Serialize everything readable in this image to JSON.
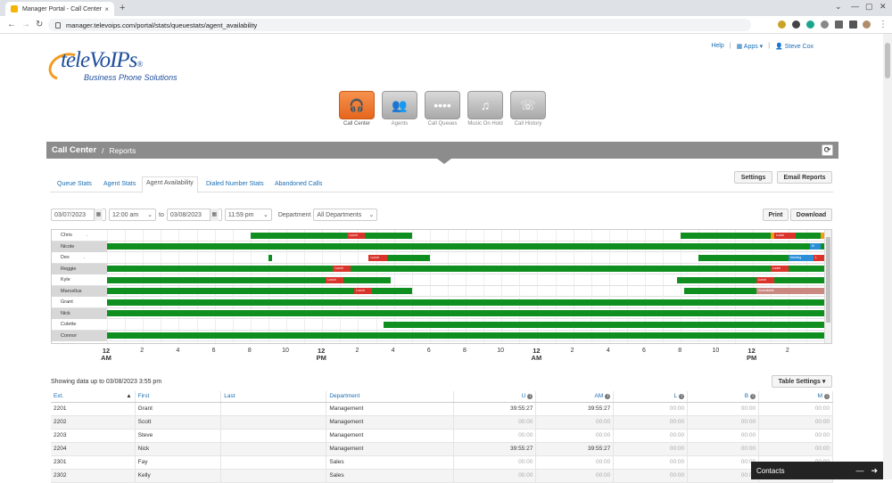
{
  "browser": {
    "tab_title": "Manager Portal - Call Center",
    "url": "manager.televoips.com/portal/stats/queuestats/agent_availability"
  },
  "toplinks": {
    "help": "Help",
    "apps": "Apps ▾",
    "user": "Steve Cox"
  },
  "logo": {
    "main": "teleVoIPs",
    "reg": "®",
    "sub": "Business Phone Solutions"
  },
  "apps": [
    {
      "label": "Call Center",
      "icon": "headset-icon",
      "glyph": "🎧",
      "active": true
    },
    {
      "label": "Agents",
      "icon": "agents-icon",
      "glyph": "👥",
      "active": false
    },
    {
      "label": "Call Queues",
      "icon": "queue-icon",
      "glyph": "••••",
      "active": false
    },
    {
      "label": "Music On Hold",
      "icon": "music-icon",
      "glyph": "♫",
      "active": false
    },
    {
      "label": "Call History",
      "icon": "phone-icon",
      "glyph": "☏",
      "active": false
    }
  ],
  "header": {
    "title": "Call Center",
    "sep": "/",
    "crumb": "Reports"
  },
  "subtabs": [
    "Queue Stats",
    "Agent Stats",
    "Agent Availability",
    "Dialed Number Stats",
    "Abandoned Calls"
  ],
  "buttons": {
    "settings": "Settings",
    "email": "Email Reports",
    "print": "Print",
    "download": "Download",
    "table_settings": "Table Settings ▾"
  },
  "filters": {
    "start_date": "03/07/2023",
    "start_time": "12:00 am",
    "to": "to",
    "end_date": "03/08/2023",
    "end_time": "11:59 pm",
    "dept_label": "Department",
    "dept_value": "All Departments"
  },
  "gantt": {
    "rows": [
      {
        "name": "Chris",
        "suffix": ".",
        "bars": [
          [
            40,
            85
          ],
          [
            160,
            200
          ]
        ],
        "tags": [
          {
            "s": 67,
            "e": 72,
            "t": "Lunch",
            "c": "#d9342b"
          },
          {
            "s": 186,
            "e": 192,
            "t": "Lunch",
            "c": "#d9342b"
          },
          {
            "s": 185,
            "e": 186,
            "t": "",
            "c": "#f39c12"
          },
          {
            "s": 199,
            "e": 200,
            "t": "",
            "c": "#f39c12"
          }
        ]
      },
      {
        "name": "Nicole",
        "suffix": "",
        "bars": [
          [
            0,
            200
          ]
        ],
        "tags": [
          {
            "s": 196,
            "e": 199,
            "t": "M",
            "c": "#2a8fd6"
          }
        ]
      },
      {
        "name": "Dex",
        "suffix": ".",
        "bars": [
          [
            45,
            46
          ],
          [
            74,
            90
          ],
          [
            165,
            200
          ]
        ],
        "tags": [
          {
            "s": 73,
            "e": 78,
            "t": "Lunch",
            "c": "#d9342b"
          },
          {
            "s": 190,
            "e": 197,
            "t": "Meeting",
            "c": "#2a8fd6"
          },
          {
            "s": 197,
            "e": 200,
            "t": "L",
            "c": "#d9342b"
          }
        ]
      },
      {
        "name": "Reggie",
        "suffix": "",
        "bars": [
          [
            0,
            200
          ]
        ],
        "tags": [
          {
            "s": 63,
            "e": 68,
            "t": "Lunch",
            "c": "#d9342b"
          },
          {
            "s": 185,
            "e": 190,
            "t": "Lunch",
            "c": "#d9342b"
          }
        ]
      },
      {
        "name": "Kyle",
        "suffix": "",
        "bars": [
          [
            0,
            79
          ],
          [
            159,
            200
          ]
        ],
        "tags": [
          {
            "s": 61,
            "e": 66,
            "t": "Lunch",
            "c": "#d9342b"
          },
          {
            "s": 181,
            "e": 186,
            "t": "Lunch",
            "c": "#d9342b"
          }
        ]
      },
      {
        "name": "Marcellus",
        "suffix": "",
        "bars": [
          [
            0,
            85
          ],
          [
            161,
            181
          ]
        ],
        "tags": [
          {
            "s": 69,
            "e": 74,
            "t": "Lunch",
            "c": "#d9342b"
          },
          {
            "s": 181,
            "e": 200,
            "t": "Unavailable",
            "c": "#c98880"
          }
        ]
      },
      {
        "name": "Grant",
        "suffix": "",
        "bars": [
          [
            0,
            200
          ]
        ],
        "tags": []
      },
      {
        "name": "Nick",
        "suffix": "",
        "bars": [
          [
            0,
            200
          ]
        ],
        "tags": []
      },
      {
        "name": "Colette",
        "suffix": "",
        "bars": [
          [
            77,
            200
          ]
        ],
        "tags": []
      },
      {
        "name": "Connor",
        "suffix": "",
        "bars": [
          [
            0,
            200
          ]
        ],
        "tags": []
      },
      {
        "name": "",
        "suffix": "",
        "bars": [
          [
            0,
            200
          ]
        ],
        "tags": []
      }
    ],
    "axis": [
      {
        "l": "12",
        "sub": "AM",
        "b": true
      },
      {
        "l": "2"
      },
      {
        "l": "4"
      },
      {
        "l": "6"
      },
      {
        "l": "8"
      },
      {
        "l": "10"
      },
      {
        "l": "12",
        "sub": "PM",
        "b": true
      },
      {
        "l": "2"
      },
      {
        "l": "4"
      },
      {
        "l": "6"
      },
      {
        "l": "8"
      },
      {
        "l": "10"
      },
      {
        "l": "12",
        "sub": "AM",
        "b": true
      },
      {
        "l": "2"
      },
      {
        "l": "4"
      },
      {
        "l": "6"
      },
      {
        "l": "8"
      },
      {
        "l": "10"
      },
      {
        "l": "12",
        "sub": "PM",
        "b": true
      },
      {
        "l": "2"
      }
    ]
  },
  "showing": "Showing data up to 03/08/2023 3:55 pm",
  "table": {
    "headers": [
      "Ext.",
      "First",
      "Last",
      "Department",
      "U",
      "AM",
      "L",
      "B",
      "M"
    ],
    "rows": [
      [
        "2201",
        "Grant",
        "",
        "Management",
        "39:55:27",
        "39:55:27",
        "00:00",
        "00:00",
        "00:00"
      ],
      [
        "2202",
        "Scott",
        "",
        "Management",
        "00:00",
        "00:00",
        "00:00",
        "00:00",
        "00:00"
      ],
      [
        "2203",
        "Steve",
        "",
        "Management",
        "00:00",
        "00:00",
        "00:00",
        "00:00",
        "00:00"
      ],
      [
        "2204",
        "Nick",
        "",
        "Management",
        "39:55:27",
        "39:55:27",
        "00:00",
        "00:00",
        "00:00"
      ],
      [
        "2301",
        "Fay",
        "",
        "Sales",
        "00:00",
        "00:00",
        "00:00",
        "00:00",
        "00:00"
      ],
      [
        "2302",
        "Kelly",
        "",
        "Sales",
        "00:00",
        "00:00",
        "00:00",
        "00:00",
        "00:00"
      ]
    ]
  },
  "contacts": {
    "label": "Contacts"
  }
}
